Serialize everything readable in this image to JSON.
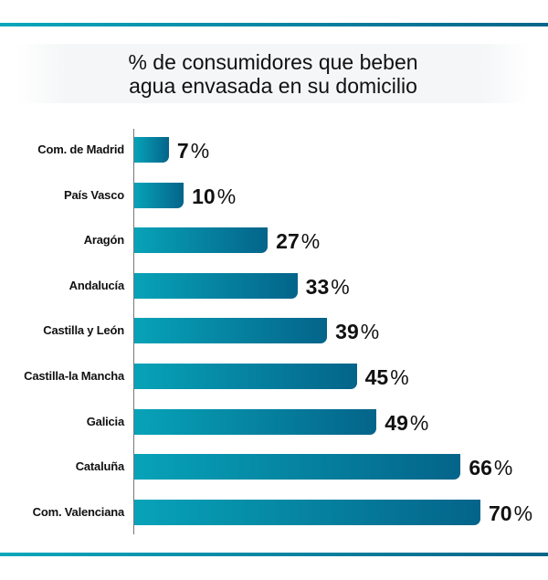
{
  "chart_data": {
    "type": "bar",
    "orientation": "horizontal",
    "title": "% de consumidores que beben agua envasada en su domicilio",
    "title_lines": [
      "% de consumidores que beben",
      "agua envasada en su domicilio"
    ],
    "categories": [
      "Com. de Madrid",
      "País Vasco",
      "Aragón",
      "Andalucía",
      "Castilla y León",
      "Castilla-la Mancha",
      "Galicia",
      "Cataluña",
      "Com. Valenciana"
    ],
    "values": [
      7,
      10,
      27,
      33,
      39,
      45,
      49,
      66,
      70
    ],
    "value_suffix": "%",
    "xlim": [
      0,
      70
    ],
    "grid": false,
    "colors": {
      "bar_start": "#07a3b8",
      "bar_end": "#04648a"
    }
  }
}
